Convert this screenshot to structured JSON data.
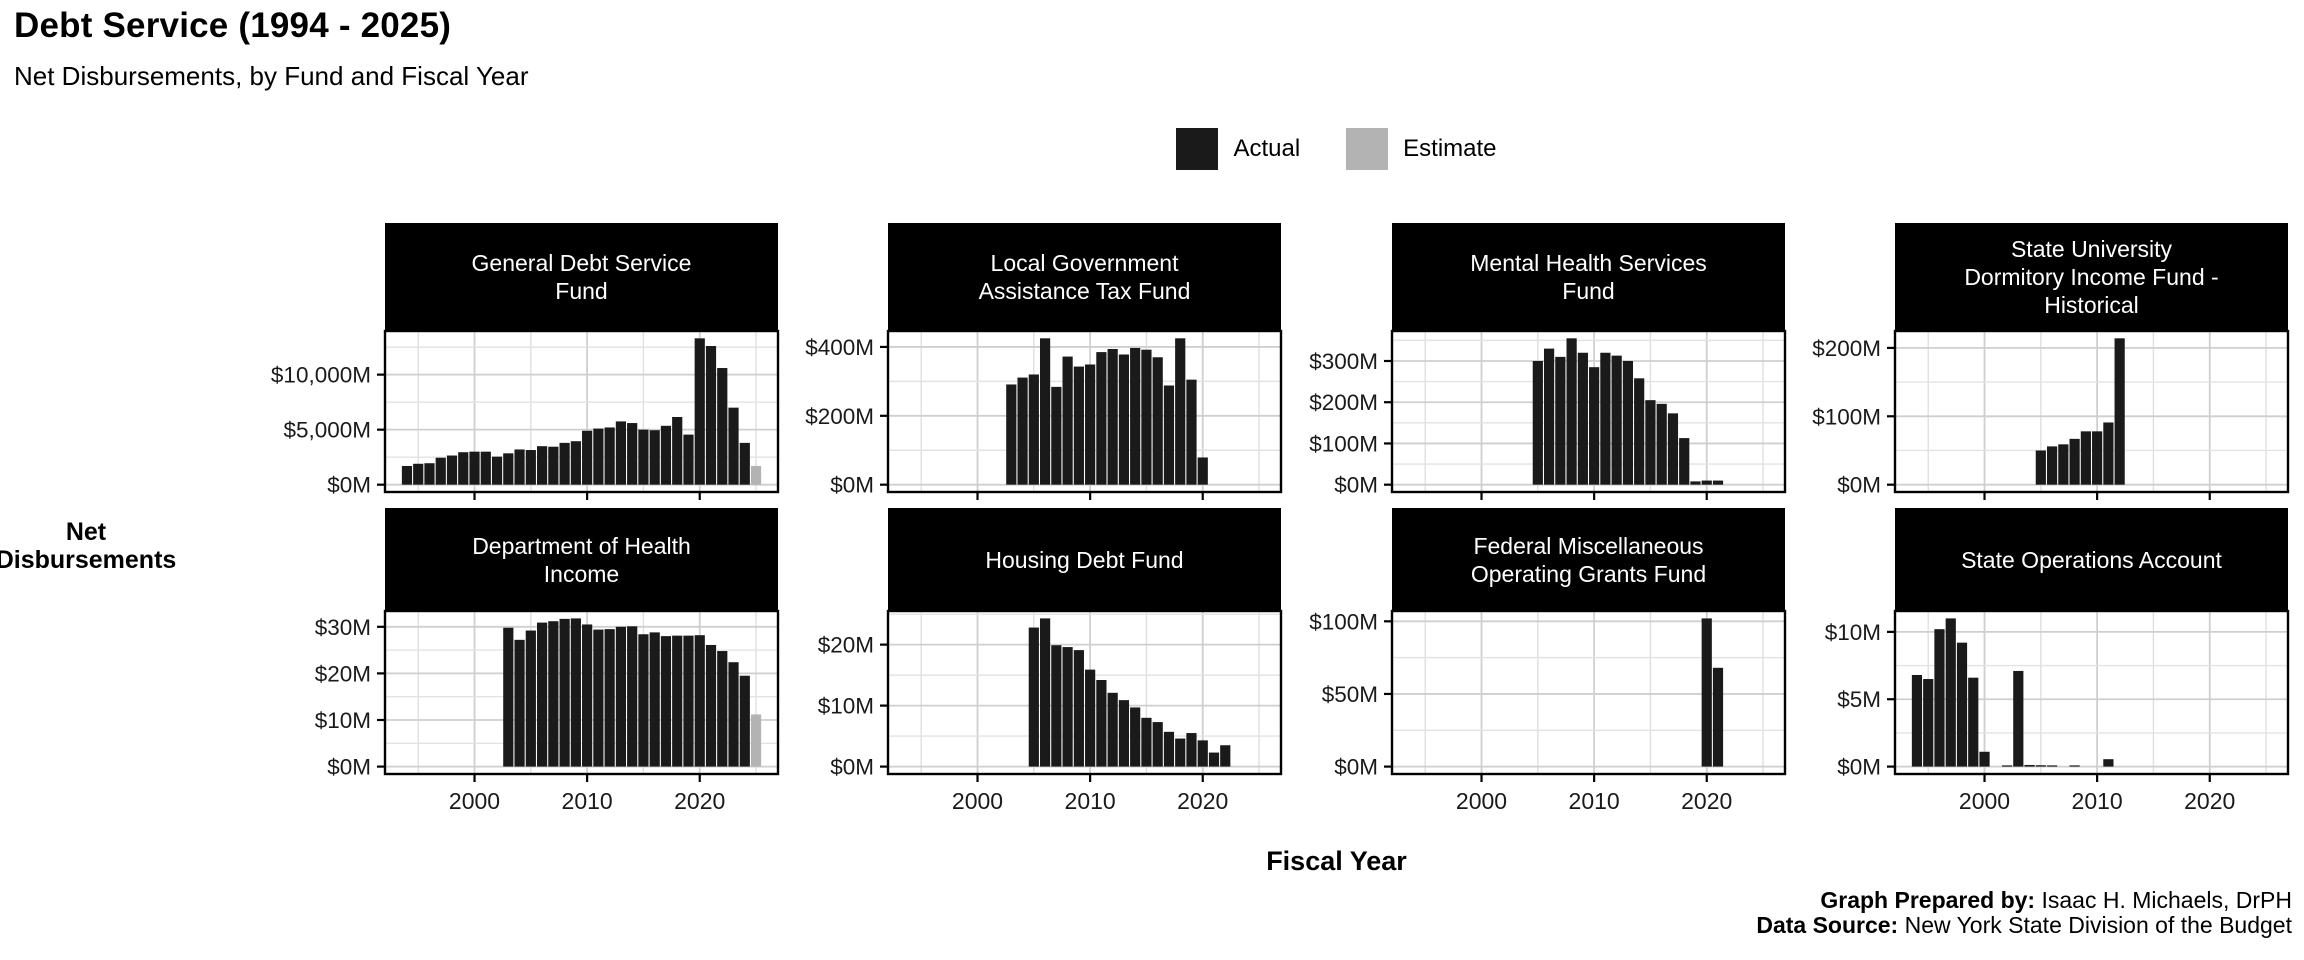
{
  "header": {
    "title": "Debt Service (1994 - 2025)",
    "subtitle": "Net Disbursements, by Fund and Fiscal Year"
  },
  "legend": {
    "actual": "Actual",
    "estimate": "Estimate",
    "colors": {
      "actual": "#1a1a1a",
      "estimate": "#b3b3b3"
    }
  },
  "axes": {
    "x_title": "Fiscal Year",
    "y_title_line1": "Net",
    "y_title_line2": "Disbursements",
    "x_tick_labels": [
      "2000",
      "2010",
      "2020"
    ],
    "x_tick_years": [
      2000,
      2010,
      2020
    ],
    "x_grid_years": [
      1995,
      2000,
      2005,
      2010,
      2015,
      2020,
      2025
    ]
  },
  "credits": {
    "prepared_by_label": "Graph Prepared by:",
    "prepared_by": "Isaac H. Michaels, DrPH",
    "source_label": "Data Source:",
    "source": "New York State Division of the Budget"
  },
  "chart_data": [
    {
      "type": "bar",
      "title": "General Debt Service Fund",
      "title_lines": [
        "General Debt Service",
        "Fund"
      ],
      "y_ticks": [
        {
          "value": 0,
          "label": "$0M"
        },
        {
          "value": 5000,
          "label": "$5,000M"
        },
        {
          "value": 10000,
          "label": "$10,000M"
        }
      ],
      "series": [
        {
          "name": "Actual",
          "points": [
            [
              1994,
              1700
            ],
            [
              1995,
              1900
            ],
            [
              1996,
              1950
            ],
            [
              1997,
              2450
            ],
            [
              1998,
              2650
            ],
            [
              1999,
              2950
            ],
            [
              2000,
              3000
            ],
            [
              2001,
              3000
            ],
            [
              2002,
              2550
            ],
            [
              2003,
              2850
            ],
            [
              2004,
              3200
            ],
            [
              2005,
              3150
            ],
            [
              2006,
              3500
            ],
            [
              2007,
              3450
            ],
            [
              2008,
              3800
            ],
            [
              2009,
              3950
            ],
            [
              2010,
              4900
            ],
            [
              2011,
              5100
            ],
            [
              2012,
              5200
            ],
            [
              2013,
              5750
            ],
            [
              2014,
              5600
            ],
            [
              2015,
              5000
            ],
            [
              2016,
              4950
            ],
            [
              2017,
              5350
            ],
            [
              2018,
              6150
            ],
            [
              2019,
              4550
            ],
            [
              2020,
              13300
            ],
            [
              2021,
              12600
            ],
            [
              2022,
              10600
            ],
            [
              2023,
              7000
            ],
            [
              2024,
              3800
            ]
          ]
        },
        {
          "name": "Estimate",
          "points": [
            [
              2025,
              1700
            ]
          ]
        }
      ]
    },
    {
      "type": "bar",
      "title": "Local Government Assistance Tax Fund",
      "title_lines": [
        "Local Government",
        "Assistance Tax Fund"
      ],
      "y_ticks": [
        {
          "value": 0,
          "label": "$0M"
        },
        {
          "value": 200,
          "label": "$200M"
        },
        {
          "value": 400,
          "label": "$400M"
        }
      ],
      "series": [
        {
          "name": "Actual",
          "points": [
            [
              2003,
              291
            ],
            [
              2004,
              311
            ],
            [
              2005,
              320
            ],
            [
              2006,
              425
            ],
            [
              2007,
              284
            ],
            [
              2008,
              372
            ],
            [
              2009,
              343
            ],
            [
              2010,
              349
            ],
            [
              2011,
              385
            ],
            [
              2012,
              394
            ],
            [
              2013,
              378
            ],
            [
              2014,
              397
            ],
            [
              2015,
              392
            ],
            [
              2016,
              370
            ],
            [
              2017,
              288
            ],
            [
              2018,
              425
            ],
            [
              2019,
              305
            ],
            [
              2020,
              79
            ]
          ]
        }
      ]
    },
    {
      "type": "bar",
      "title": "Mental Health Services Fund",
      "title_lines": [
        "Mental Health Services",
        "Fund"
      ],
      "y_ticks": [
        {
          "value": 0,
          "label": "$0M"
        },
        {
          "value": 100,
          "label": "$100M"
        },
        {
          "value": 200,
          "label": "$200M"
        },
        {
          "value": 300,
          "label": "$300M"
        }
      ],
      "series": [
        {
          "name": "Actual",
          "points": [
            [
              2005,
              300
            ],
            [
              2006,
              330
            ],
            [
              2007,
              310
            ],
            [
              2008,
              355
            ],
            [
              2009,
              320
            ],
            [
              2010,
              285
            ],
            [
              2011,
              320
            ],
            [
              2012,
              313
            ],
            [
              2013,
              300
            ],
            [
              2014,
              258
            ],
            [
              2015,
              205
            ],
            [
              2016,
              196
            ],
            [
              2017,
              173
            ],
            [
              2018,
              113
            ],
            [
              2019,
              8
            ],
            [
              2020,
              10
            ],
            [
              2021,
              10
            ]
          ]
        }
      ]
    },
    {
      "type": "bar",
      "title": "State University Dormitory Income Fund - Historical",
      "title_lines": [
        "State University",
        "Dormitory Income Fund -",
        "Historical"
      ],
      "y_ticks": [
        {
          "value": 0,
          "label": "$0M"
        },
        {
          "value": 100,
          "label": "$100M"
        },
        {
          "value": 200,
          "label": "$200M"
        }
      ],
      "series": [
        {
          "name": "Actual",
          "points": [
            [
              2005,
              50
            ],
            [
              2006,
              56
            ],
            [
              2007,
              59
            ],
            [
              2008,
              67
            ],
            [
              2009,
              78
            ],
            [
              2010,
              78
            ],
            [
              2011,
              91
            ],
            [
              2012,
              214
            ]
          ]
        }
      ]
    },
    {
      "type": "bar",
      "title": "Department of Health Income",
      "title_lines": [
        "Department of Health",
        "Income"
      ],
      "y_ticks": [
        {
          "value": 0,
          "label": "$0M"
        },
        {
          "value": 10,
          "label": "$10M"
        },
        {
          "value": 20,
          "label": "$20M"
        },
        {
          "value": 30,
          "label": "$30M"
        }
      ],
      "series": [
        {
          "name": "Actual",
          "points": [
            [
              2003,
              29.8
            ],
            [
              2004,
              27.2
            ],
            [
              2005,
              29.2
            ],
            [
              2006,
              30.9
            ],
            [
              2007,
              31.2
            ],
            [
              2008,
              31.7
            ],
            [
              2009,
              31.8
            ],
            [
              2010,
              30.5
            ],
            [
              2011,
              29.4
            ],
            [
              2012,
              29.5
            ],
            [
              2013,
              30.0
            ],
            [
              2014,
              30.1
            ],
            [
              2015,
              28.4
            ],
            [
              2016,
              28.8
            ],
            [
              2017,
              28.0
            ],
            [
              2018,
              28.1
            ],
            [
              2019,
              28.1
            ],
            [
              2020,
              28.2
            ],
            [
              2021,
              26.1
            ],
            [
              2022,
              24.8
            ],
            [
              2023,
              22.4
            ],
            [
              2024,
              19.5
            ]
          ]
        },
        {
          "name": "Estimate",
          "points": [
            [
              2025,
              11.2
            ]
          ]
        }
      ]
    },
    {
      "type": "bar",
      "title": "Housing Debt Fund",
      "title_lines": [
        "Housing Debt Fund"
      ],
      "y_ticks": [
        {
          "value": 0,
          "label": "$0M"
        },
        {
          "value": 10,
          "label": "$10M"
        },
        {
          "value": 20,
          "label": "$20M"
        }
      ],
      "series": [
        {
          "name": "Actual",
          "points": [
            [
              2005,
              22.8
            ],
            [
              2006,
              24.3
            ],
            [
              2007,
              19.9
            ],
            [
              2008,
              19.6
            ],
            [
              2009,
              19.1
            ],
            [
              2010,
              15.9
            ],
            [
              2011,
              14.2
            ],
            [
              2012,
              12.1
            ],
            [
              2013,
              10.9
            ],
            [
              2014,
              9.7
            ],
            [
              2015,
              8.0
            ],
            [
              2016,
              7.3
            ],
            [
              2017,
              5.7
            ],
            [
              2018,
              4.6
            ],
            [
              2019,
              5.5
            ],
            [
              2020,
              4.3
            ],
            [
              2021,
              2.3
            ],
            [
              2022,
              3.5
            ]
          ]
        }
      ]
    },
    {
      "type": "bar",
      "title": "Federal Miscellaneous Operating Grants Fund",
      "title_lines": [
        "Federal Miscellaneous",
        "Operating Grants Fund"
      ],
      "y_ticks": [
        {
          "value": 0,
          "label": "$0M"
        },
        {
          "value": 50,
          "label": "$50M"
        },
        {
          "value": 100,
          "label": "$100M"
        }
      ],
      "series": [
        {
          "name": "Actual",
          "points": [
            [
              2020,
              102
            ],
            [
              2021,
              68
            ]
          ]
        }
      ]
    },
    {
      "type": "bar",
      "title": "State Operations Account",
      "title_lines": [
        "State Operations Account"
      ],
      "y_ticks": [
        {
          "value": 0,
          "label": "$0M"
        },
        {
          "value": 5,
          "label": "$5M"
        },
        {
          "value": 10,
          "label": "$10M"
        }
      ],
      "series": [
        {
          "name": "Actual",
          "points": [
            [
              1994,
              6.8
            ],
            [
              1995,
              6.5
            ],
            [
              1996,
              10.2
            ],
            [
              1997,
              11.0
            ],
            [
              1998,
              9.2
            ],
            [
              1999,
              6.6
            ],
            [
              2000,
              1.1
            ],
            [
              2002,
              0.08
            ],
            [
              2003,
              7.1
            ],
            [
              2004,
              0.12
            ],
            [
              2005,
              0.1
            ],
            [
              2006,
              0.08
            ],
            [
              2008,
              0.06
            ],
            [
              2011,
              0.55
            ]
          ]
        }
      ]
    }
  ]
}
